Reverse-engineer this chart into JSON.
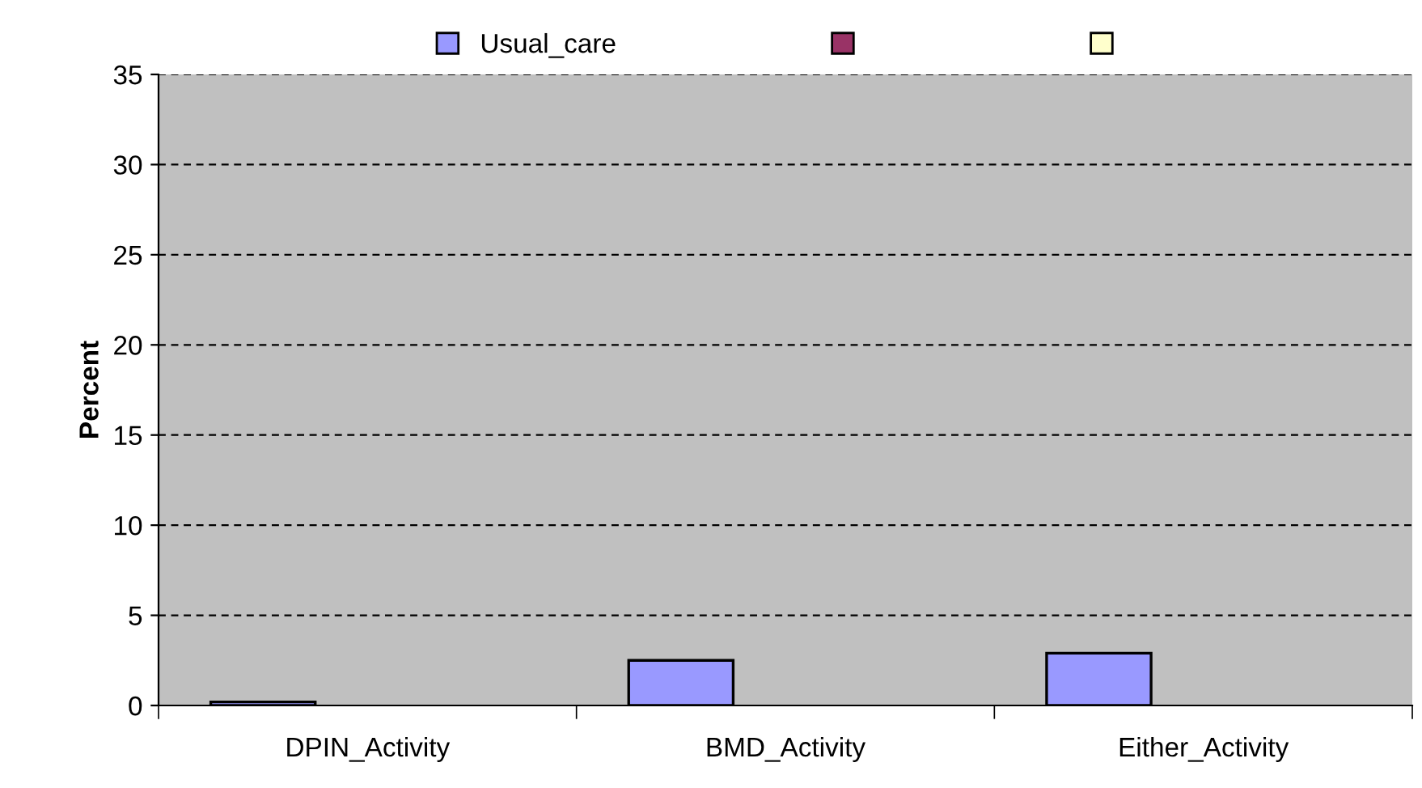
{
  "chart_data": {
    "type": "bar",
    "ylabel": "Percent",
    "categories": [
      "DPIN_Activity",
      "BMD_Activity",
      "Either_Activity"
    ],
    "series": [
      {
        "name": "Usual_care",
        "color": "#9999ff",
        "values": [
          0.2,
          2.5,
          2.9
        ]
      },
      {
        "color": "#993366",
        "values": [
          null,
          null,
          null
        ]
      },
      {
        "color": "#ffffcc",
        "values": [
          null,
          null,
          null
        ]
      }
    ],
    "ylim": [
      0,
      35
    ],
    "yticks": [
      0,
      5,
      10,
      15,
      20,
      25,
      30,
      35
    ],
    "grid": "y",
    "legend": "top"
  }
}
